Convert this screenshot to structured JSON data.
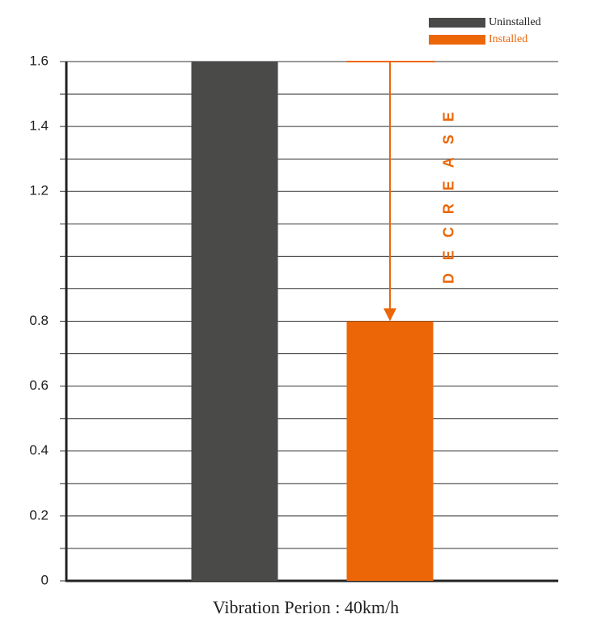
{
  "chart_data": {
    "type": "bar",
    "categories": [
      "Vibration Perion : 40km/h"
    ],
    "series": [
      {
        "name": "Uninstalled",
        "color": "#4a4a49",
        "values": [
          1.6
        ]
      },
      {
        "name": "Installed",
        "color": "#ec6608",
        "values": [
          0.8
        ]
      }
    ],
    "ylim": [
      0,
      1.6
    ],
    "yticks": [
      0,
      0.2,
      0.4,
      0.6,
      0.8,
      1.2,
      1.4,
      1.6
    ],
    "minor_yticks": [
      0.1,
      0.3,
      0.5,
      0.7,
      0.9,
      1.0,
      1.1,
      1.3,
      1.5
    ],
    "grid": true,
    "legend": "top-right",
    "annotation": "DECREASE"
  }
}
